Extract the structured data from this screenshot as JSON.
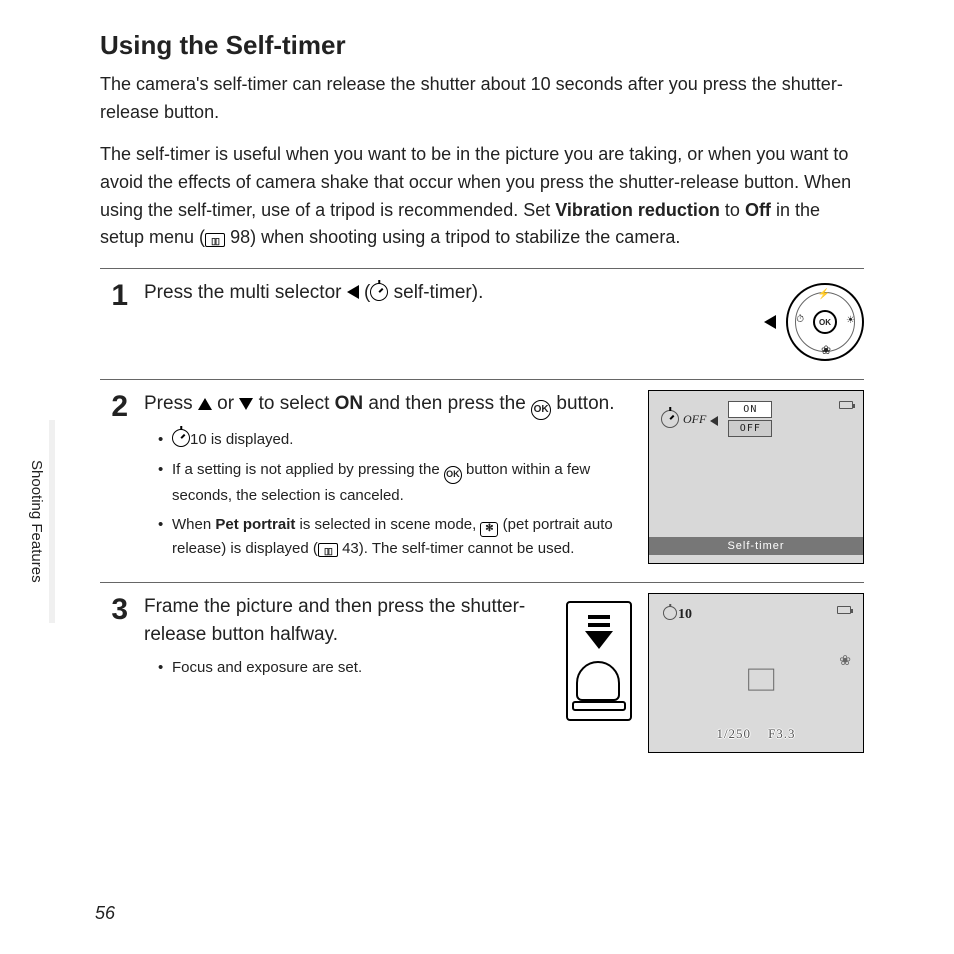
{
  "title": "Using the Self-timer",
  "intro": {
    "p1": "The camera's self-timer can release the shutter about 10 seconds after you press the shutter-release button.",
    "p2_a": "The self-timer is useful when you want to be in the picture you are taking, or when you want to avoid the effects of camera shake that occur when you press the shutter-release button. When using the self-timer, use of a tripod is recommended. Set ",
    "p2_bold1": "Vibration reduction",
    "p2_b": " to ",
    "p2_bold2": "Off",
    "p2_c": " in the setup menu (",
    "p2_pageref": " 98) when shooting using a tripod to stabilize the camera."
  },
  "side_tab": "Shooting Features",
  "page_number": "56",
  "step1": {
    "num": "1",
    "text_a": "Press the multi selector ",
    "text_b": " (",
    "text_c": " self-timer).",
    "selector_ok": "OK"
  },
  "step2": {
    "num": "2",
    "text_a": "Press ",
    "text_b": " or ",
    "text_c": " to select ",
    "on": "ON",
    "text_d": " and then press the ",
    "ok": "OK",
    "text_e": " button.",
    "b1_a": "10 is displayed.",
    "b2_a": "If a setting is not applied by pressing the ",
    "b2_ok": "OK",
    "b2_b": " button within a few seconds, the selection is canceled.",
    "b3_a": "When ",
    "b3_bold": "Pet portrait",
    "b3_b": " is selected in scene mode, ",
    "b3_c": " (pet portrait auto release) is displayed (",
    "b3_pageref": " 43). The self-timer cannot be used.",
    "lcd": {
      "off_label": "OFF",
      "on_box": "ON",
      "off_box": "OFF",
      "bar": "Self-timer"
    }
  },
  "step3": {
    "num": "3",
    "text": "Frame the picture and then press the shutter-release button halfway.",
    "b1": "Focus and exposure are set.",
    "lcd": {
      "t10": "10",
      "shutter": "1/250",
      "fstop": "F3.3"
    }
  }
}
